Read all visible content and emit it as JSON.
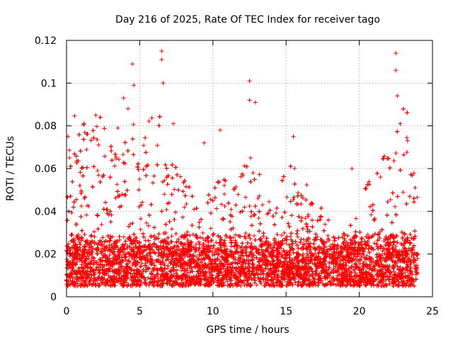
{
  "chart_data": {
    "type": "scatter",
    "title": "Day 216 of 2025, Rate Of TEC Index for receiver tago",
    "xlabel": "GPS time / hours",
    "ylabel": "ROTI / TECUs",
    "xlim": [
      0,
      25
    ],
    "ylim": [
      0,
      0.12
    ],
    "xticks": [
      0,
      5,
      10,
      15,
      20,
      25
    ],
    "xtick_labels": [
      "0",
      "5",
      "10",
      "15",
      "20",
      "25"
    ],
    "yticks": [
      0,
      0.02,
      0.04,
      0.06,
      0.08,
      0.1,
      0.12
    ],
    "ytick_labels": [
      "0",
      "0.02",
      "0.04",
      "0.06",
      "0.08",
      "0.1",
      "0.12"
    ],
    "grid": true,
    "marker": "+",
    "color": "#ff0000",
    "series": [
      {
        "name": "ROTI",
        "x_range": [
          0,
          24
        ],
        "typical_band": [
          0.005,
          0.03
        ],
        "notable_points": [
          {
            "x": 0.1,
            "y": 0.075
          },
          {
            "x": 0.2,
            "y": 0.065
          },
          {
            "x": 1.2,
            "y": 0.081
          },
          {
            "x": 2.0,
            "y": 0.085
          },
          {
            "x": 3.5,
            "y": 0.079
          },
          {
            "x": 3.9,
            "y": 0.093
          },
          {
            "x": 4.2,
            "y": 0.088
          },
          {
            "x": 4.5,
            "y": 0.109
          },
          {
            "x": 4.6,
            "y": 0.099
          },
          {
            "x": 6.5,
            "y": 0.115
          },
          {
            "x": 6.5,
            "y": 0.111
          },
          {
            "x": 6.6,
            "y": 0.1
          },
          {
            "x": 7.3,
            "y": 0.081
          },
          {
            "x": 9.4,
            "y": 0.072
          },
          {
            "x": 10.5,
            "y": 0.078
          },
          {
            "x": 12.5,
            "y": 0.101
          },
          {
            "x": 12.5,
            "y": 0.092
          },
          {
            "x": 12.9,
            "y": 0.091
          },
          {
            "x": 15.5,
            "y": 0.075
          },
          {
            "x": 19.5,
            "y": 0.06
          },
          {
            "x": 22.5,
            "y": 0.114
          },
          {
            "x": 22.5,
            "y": 0.106
          },
          {
            "x": 22.6,
            "y": 0.094
          },
          {
            "x": 22.8,
            "y": 0.081
          },
          {
            "x": 23.3,
            "y": 0.073
          }
        ]
      }
    ]
  }
}
